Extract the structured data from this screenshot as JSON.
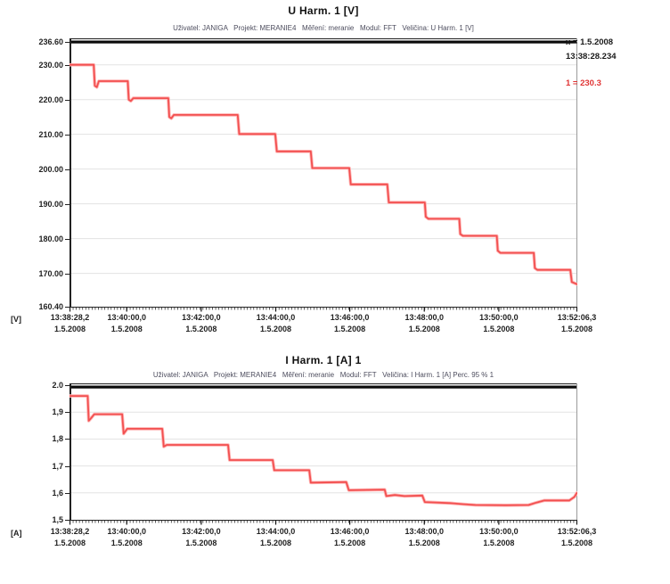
{
  "colors": {
    "trace_main": "#f25050",
    "trace_halo": "#ffb4b4",
    "grid": "#e3e3e3",
    "axis_dark": "#222222",
    "axis_light": "#9a9a9a",
    "top_bar": "#0a0a0a",
    "annotation_value_red": "#e03434",
    "subtitle_gray": "#4d4d5e"
  },
  "annotation": {
    "x_label": "x = 1.5.2008",
    "time_label": "13:38:28.234",
    "value_label": "1 = 230.3"
  },
  "chart_data": [
    {
      "type": "line",
      "title": "U Harm. 1 [V]",
      "subtitle": "Uživatel: JANIGA   Projekt: MERANIE4   Měření: meranie   Modul: FFT   Veličina: U Harm. 1 [V]",
      "unit": "[V]",
      "legend": "none",
      "grid": "horizontal",
      "line_color": "#f25050",
      "ylim": [
        160.4,
        236.6
      ],
      "y_ticks": [
        {
          "label": "236.60",
          "value": 236.6
        },
        {
          "label": "230.00",
          "value": 230.0
        },
        {
          "label": "220.00",
          "value": 220.0
        },
        {
          "label": "210.00",
          "value": 210.0
        },
        {
          "label": "200.00",
          "value": 200.0
        },
        {
          "label": "190.00",
          "value": 190.0
        },
        {
          "label": "180.00",
          "value": 180.0
        },
        {
          "label": "170.00",
          "value": 170.0
        },
        {
          "label": "160.40",
          "value": 160.4
        }
      ],
      "x_ticks": [
        {
          "time": "13:38:28,2",
          "date": "1.5.2008",
          "pos": 0.0
        },
        {
          "time": "13:40:00,0",
          "date": "1.5.2008",
          "pos": 0.112
        },
        {
          "time": "13:42:00,0",
          "date": "1.5.2008",
          "pos": 0.259
        },
        {
          "time": "13:44:00,0",
          "date": "1.5.2008",
          "pos": 0.406
        },
        {
          "time": "13:46:00,0",
          "date": "1.5.2008",
          "pos": 0.552
        },
        {
          "time": "13:48:00,0",
          "date": "1.5.2008",
          "pos": 0.699
        },
        {
          "time": "13:50:00,0",
          "date": "1.5.2008",
          "pos": 0.846
        },
        {
          "time": "13:52:06,3",
          "date": "1.5.2008",
          "pos": 1.0
        }
      ],
      "points": [
        [
          0.0,
          230.0
        ],
        [
          0.047,
          230.0
        ],
        [
          0.049,
          224.0
        ],
        [
          0.053,
          223.6
        ],
        [
          0.057,
          225.3
        ],
        [
          0.114,
          225.3
        ],
        [
          0.116,
          220.0
        ],
        [
          0.12,
          219.6
        ],
        [
          0.125,
          220.4
        ],
        [
          0.194,
          220.4
        ],
        [
          0.196,
          215.0
        ],
        [
          0.2,
          214.6
        ],
        [
          0.205,
          215.6
        ],
        [
          0.331,
          215.6
        ],
        [
          0.334,
          210.1
        ],
        [
          0.405,
          210.1
        ],
        [
          0.408,
          205.1
        ],
        [
          0.475,
          205.1
        ],
        [
          0.478,
          200.3
        ],
        [
          0.551,
          200.3
        ],
        [
          0.554,
          195.6
        ],
        [
          0.626,
          195.6
        ],
        [
          0.629,
          190.4
        ],
        [
          0.7,
          190.4
        ],
        [
          0.702,
          186.3
        ],
        [
          0.707,
          185.7
        ],
        [
          0.768,
          185.7
        ],
        [
          0.77,
          181.3
        ],
        [
          0.775,
          180.8
        ],
        [
          0.842,
          180.8
        ],
        [
          0.844,
          176.5
        ],
        [
          0.849,
          175.9
        ],
        [
          0.915,
          175.9
        ],
        [
          0.917,
          171.5
        ],
        [
          0.922,
          171.0
        ],
        [
          0.987,
          171.0
        ],
        [
          0.99,
          167.5
        ],
        [
          1.0,
          166.9
        ]
      ]
    },
    {
      "type": "line",
      "title": "I Harm. 1 [A] 1",
      "subtitle": "Uživatel: JANIGA   Projekt: MERANIE4   Měření: meranie   Modul: FFT   Veličina: I Harm. 1 [A] Perc. 95 % 1",
      "unit": "[A]",
      "legend": "none",
      "grid": "horizontal",
      "line_color": "#f25050",
      "ylim": [
        1.5,
        2.0
      ],
      "y_ticks": [
        {
          "label": "2.0",
          "value": 2.0
        },
        {
          "label": "1,9",
          "value": 1.9
        },
        {
          "label": "1,8",
          "value": 1.8
        },
        {
          "label": "1,7",
          "value": 1.7
        },
        {
          "label": "1,6",
          "value": 1.6
        },
        {
          "label": "1,5",
          "value": 1.5
        }
      ],
      "x_ticks": [
        {
          "time": "13:38:28,2",
          "date": "1.5.2008",
          "pos": 0.0
        },
        {
          "time": "13:40:00,0",
          "date": "1.5.2008",
          "pos": 0.112
        },
        {
          "time": "13:42:00,0",
          "date": "1.5.2008",
          "pos": 0.259
        },
        {
          "time": "13:44:00,0",
          "date": "1.5.2008",
          "pos": 0.406
        },
        {
          "time": "13:46:00,0",
          "date": "1.5.2008",
          "pos": 0.552
        },
        {
          "time": "13:48:00,0",
          "date": "1.5.2008",
          "pos": 0.699
        },
        {
          "time": "13:50:00,0",
          "date": "1.5.2008",
          "pos": 0.846
        },
        {
          "time": "13:52:06,3",
          "date": "1.5.2008",
          "pos": 1.0
        }
      ],
      "points": [
        [
          0.0,
          1.96
        ],
        [
          0.035,
          1.96
        ],
        [
          0.037,
          1.868
        ],
        [
          0.042,
          1.878
        ],
        [
          0.048,
          1.892
        ],
        [
          0.103,
          1.892
        ],
        [
          0.106,
          1.82
        ],
        [
          0.113,
          1.838
        ],
        [
          0.182,
          1.838
        ],
        [
          0.185,
          1.772
        ],
        [
          0.191,
          1.778
        ],
        [
          0.312,
          1.778
        ],
        [
          0.315,
          1.722
        ],
        [
          0.4,
          1.722
        ],
        [
          0.403,
          1.684
        ],
        [
          0.472,
          1.684
        ],
        [
          0.475,
          1.638
        ],
        [
          0.545,
          1.64
        ],
        [
          0.55,
          1.61
        ],
        [
          0.621,
          1.612
        ],
        [
          0.624,
          1.588
        ],
        [
          0.641,
          1.592
        ],
        [
          0.66,
          1.588
        ],
        [
          0.695,
          1.59
        ],
        [
          0.7,
          1.566
        ],
        [
          0.75,
          1.562
        ],
        [
          0.776,
          1.558
        ],
        [
          0.8,
          1.555
        ],
        [
          0.86,
          1.554
        ],
        [
          0.905,
          1.555
        ],
        [
          0.92,
          1.564
        ],
        [
          0.936,
          1.572
        ],
        [
          0.985,
          1.572
        ],
        [
          0.995,
          1.585
        ],
        [
          1.0,
          1.6
        ]
      ]
    }
  ]
}
